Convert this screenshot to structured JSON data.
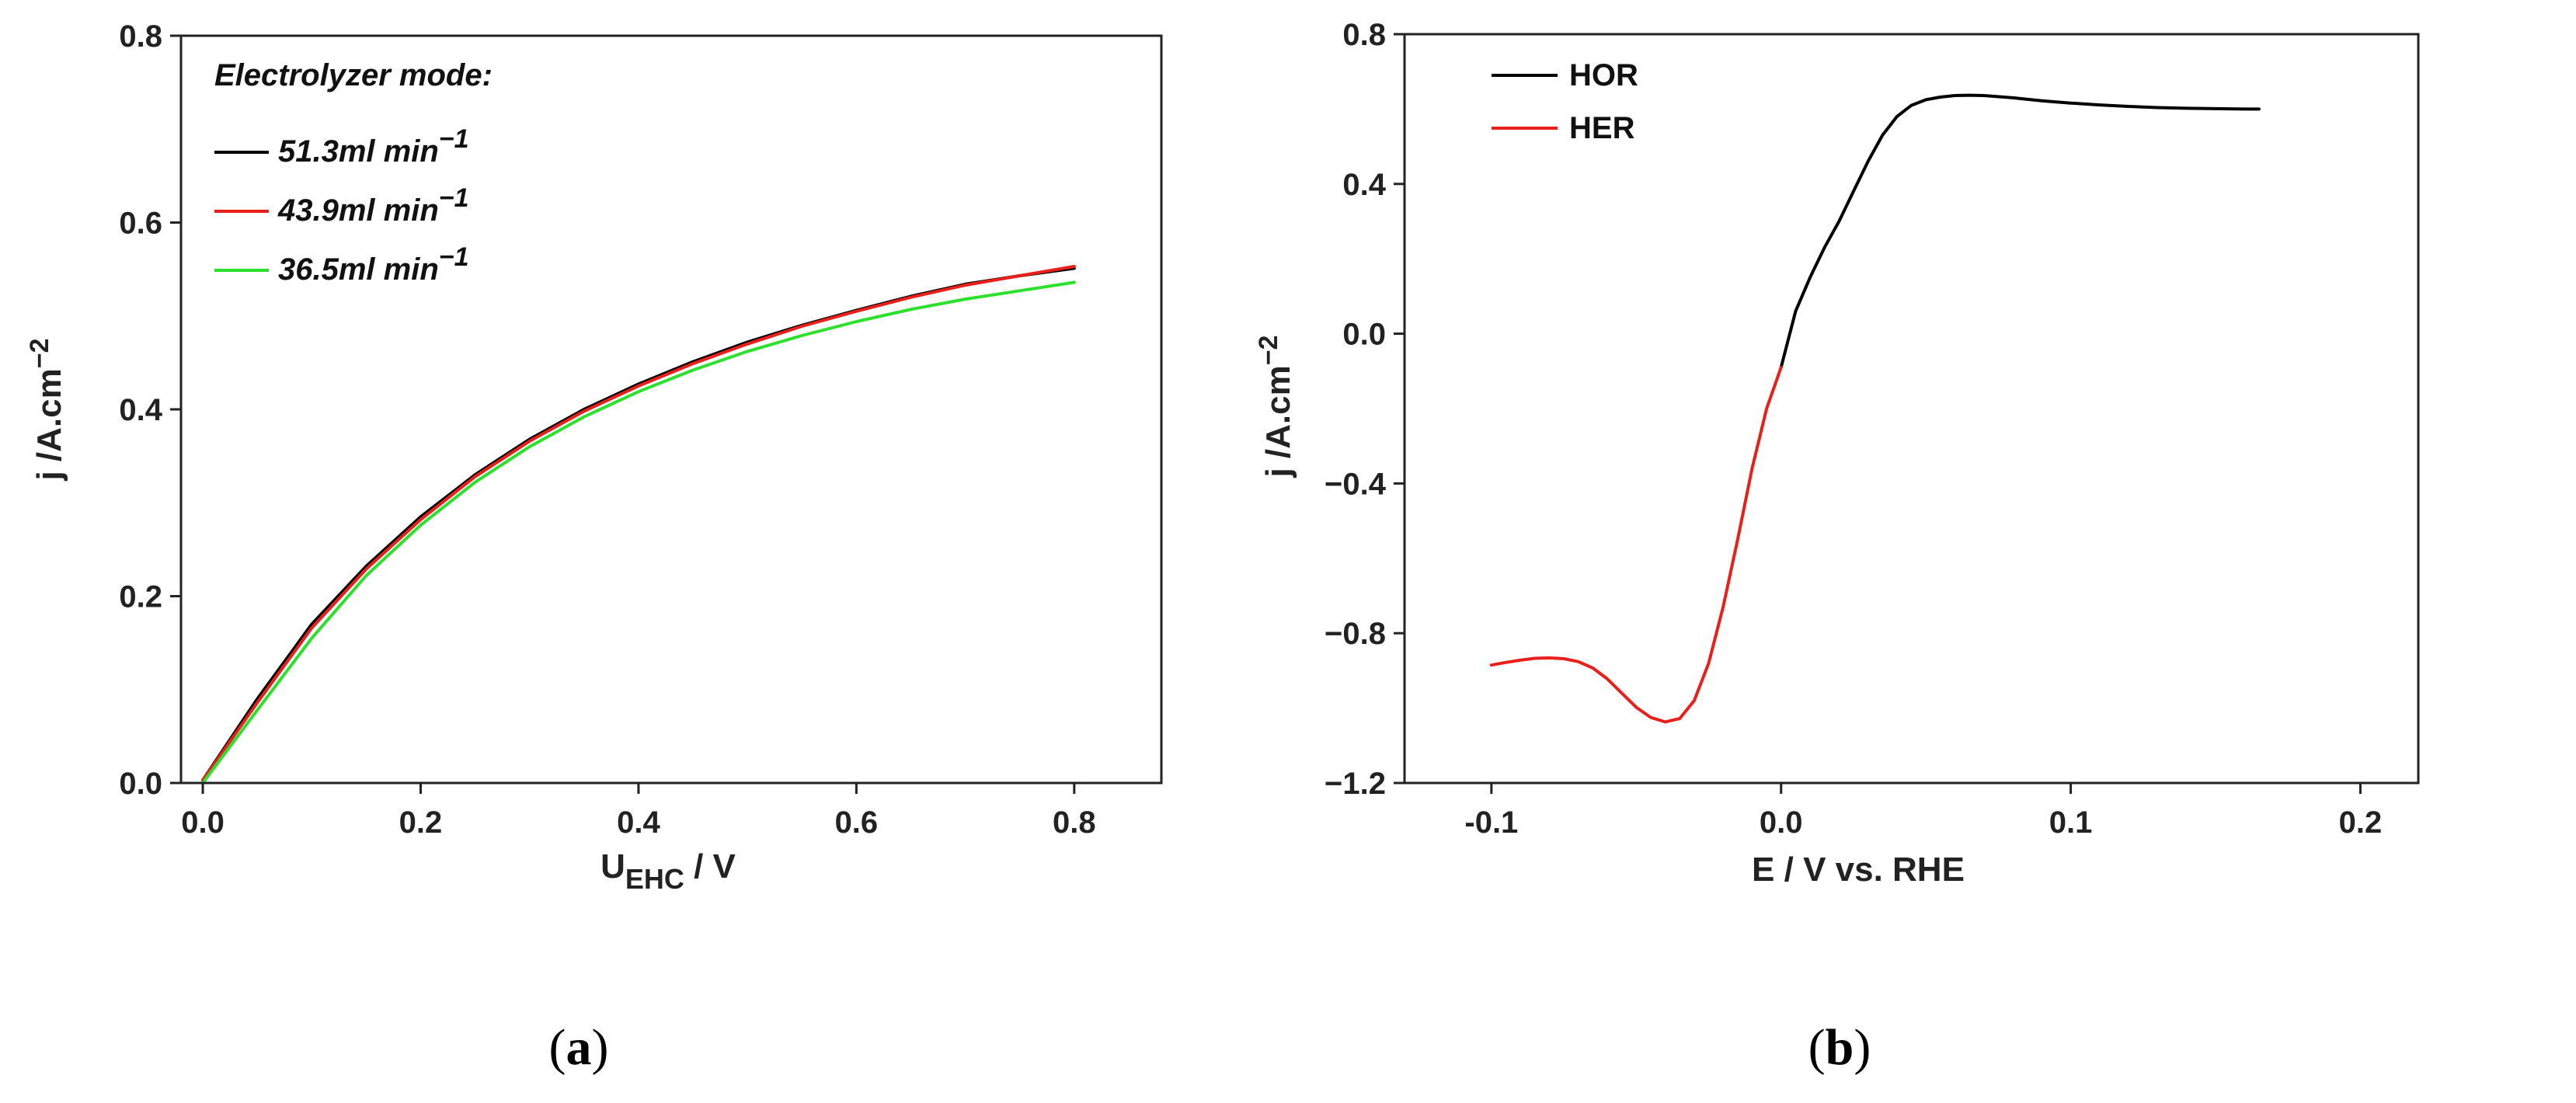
{
  "chart_data": [
    {
      "type": "line",
      "panel_label": "a",
      "xlabel": "U",
      "xlabel_sub": "EHC",
      "xlabel_unit": " / V",
      "ylabel": "j /A.cm",
      "ylabel_sup": "−2",
      "xlim": [
        -0.02,
        0.88
      ],
      "ylim": [
        0.0,
        0.8
      ],
      "xticks": [
        "0.0",
        "0.2",
        "0.4",
        "0.6",
        "0.8"
      ],
      "xtick_values": [
        0.0,
        0.2,
        0.4,
        0.6,
        0.8
      ],
      "yticks": [
        "0.0",
        "0.2",
        "0.4",
        "0.6",
        "0.8"
      ],
      "ytick_values": [
        0.0,
        0.2,
        0.4,
        0.6,
        0.8
      ],
      "legend_title": "Electrolyzer mode:",
      "legend_position": "top-left",
      "series": [
        {
          "name": "51.3ml min",
          "name_sup": "−1",
          "color": "#000000",
          "x": [
            0.0,
            0.05,
            0.1,
            0.15,
            0.2,
            0.25,
            0.3,
            0.35,
            0.4,
            0.45,
            0.5,
            0.55,
            0.6,
            0.65,
            0.7,
            0.75,
            0.8
          ],
          "y": [
            0.003,
            0.09,
            0.17,
            0.232,
            0.285,
            0.33,
            0.368,
            0.4,
            0.427,
            0.451,
            0.472,
            0.49,
            0.506,
            0.521,
            0.534,
            0.543,
            0.551
          ]
        },
        {
          "name": "43.9ml min",
          "name_sup": "−1",
          "color": "#e8201b",
          "x": [
            0.0,
            0.05,
            0.1,
            0.15,
            0.2,
            0.25,
            0.3,
            0.35,
            0.4,
            0.45,
            0.5,
            0.55,
            0.6,
            0.65,
            0.7,
            0.75,
            0.8
          ],
          "y": [
            0.003,
            0.086,
            0.166,
            0.229,
            0.282,
            0.328,
            0.366,
            0.398,
            0.425,
            0.449,
            0.47,
            0.489,
            0.505,
            0.52,
            0.533,
            0.543,
            0.553
          ]
        },
        {
          "name": "36.5ml min",
          "name_sup": "−1",
          "color": "#2ee02e",
          "x": [
            0.0,
            0.05,
            0.1,
            0.15,
            0.2,
            0.25,
            0.3,
            0.35,
            0.4,
            0.45,
            0.5,
            0.55,
            0.6,
            0.65,
            0.7,
            0.75,
            0.8
          ],
          "y": [
            0.0,
            0.078,
            0.155,
            0.222,
            0.276,
            0.322,
            0.36,
            0.392,
            0.419,
            0.442,
            0.462,
            0.479,
            0.494,
            0.507,
            0.518,
            0.527,
            0.536
          ]
        }
      ]
    },
    {
      "type": "line",
      "panel_label": "b",
      "xlabel": "E  / V vs. RHE",
      "ylabel": "j /A.cm",
      "ylabel_sup": "−2",
      "xlim": [
        -0.13,
        0.22
      ],
      "ylim": [
        -1.2,
        0.8
      ],
      "xticks": [
        "-0.1",
        "0.0",
        "0.1",
        "0.2"
      ],
      "xtick_values": [
        -0.1,
        0.0,
        0.1,
        0.2
      ],
      "yticks": [
        "−1.2",
        "−0.8",
        "−0.4",
        "0.0",
        "0.4",
        "0.8"
      ],
      "ytick_values": [
        -1.2,
        -0.8,
        -0.4,
        0.0,
        0.4,
        0.8
      ],
      "legend_position": "top-left",
      "series": [
        {
          "name": "HOR",
          "color": "#000000",
          "x": [
            0.0,
            0.005,
            0.01,
            0.015,
            0.02,
            0.025,
            0.03,
            0.035,
            0.04,
            0.045,
            0.05,
            0.055,
            0.06,
            0.065,
            0.07,
            0.08,
            0.09,
            0.1,
            0.11,
            0.12,
            0.13,
            0.14,
            0.15,
            0.16,
            0.165
          ],
          "y": [
            -0.09,
            0.06,
            0.15,
            0.23,
            0.3,
            0.38,
            0.46,
            0.53,
            0.58,
            0.61,
            0.625,
            0.632,
            0.636,
            0.637,
            0.636,
            0.63,
            0.622,
            0.616,
            0.611,
            0.607,
            0.604,
            0.602,
            0.601,
            0.6,
            0.6
          ]
        },
        {
          "name": "HER",
          "color": "#e8201b",
          "x": [
            -0.1,
            -0.095,
            -0.09,
            -0.085,
            -0.08,
            -0.075,
            -0.07,
            -0.065,
            -0.06,
            -0.055,
            -0.05,
            -0.045,
            -0.04,
            -0.035,
            -0.03,
            -0.025,
            -0.02,
            -0.015,
            -0.01,
            -0.005,
            0.0
          ],
          "y": [
            -0.885,
            -0.878,
            -0.872,
            -0.867,
            -0.866,
            -0.868,
            -0.876,
            -0.893,
            -0.922,
            -0.96,
            -0.998,
            -1.025,
            -1.037,
            -1.028,
            -0.98,
            -0.88,
            -0.73,
            -0.55,
            -0.36,
            -0.2,
            -0.09
          ]
        }
      ]
    }
  ]
}
